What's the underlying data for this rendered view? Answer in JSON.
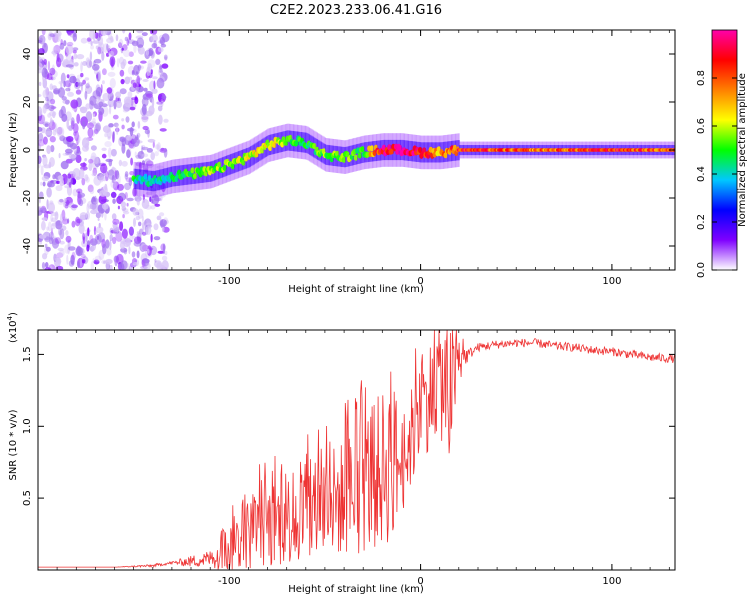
{
  "figure_title": "C2E2.2023.233.06.41.G16",
  "colors": {
    "snr_line": "#ee3333",
    "axis": "#000000"
  },
  "chart_data": [
    {
      "type": "heatmap",
      "name": "spectrogram",
      "xlabel": "Height of straight line (km)",
      "ylabel": "Frequency (Hz)",
      "xlim": [
        -200,
        133
      ],
      "ylim": [
        -50,
        50
      ],
      "xticks": [
        -100,
        0,
        100
      ],
      "yticks": [
        -40,
        -20,
        0,
        20,
        40
      ],
      "colorbar": {
        "label": "Normalized spectral amplitude",
        "range": [
          0,
          1
        ],
        "ticks": [
          "0.0",
          "0.2",
          "0.4",
          "0.6",
          "0.8"
        ],
        "colormap": [
          "#ffffff",
          "#7f00ff",
          "#0000ff",
          "#00c8ff",
          "#00ff00",
          "#ffff00",
          "#ff8000",
          "#ff0000",
          "#ff00aa"
        ]
      },
      "ridge": {
        "heights_km": [
          -150,
          -140,
          -130,
          -120,
          -110,
          -100,
          -90,
          -80,
          -70,
          -60,
          -50,
          -40,
          -30,
          -20,
          -10,
          0,
          10,
          20,
          40,
          60,
          80,
          100,
          133
        ],
        "freq_hz": [
          -12,
          -13,
          -11,
          -10,
          -9,
          -6,
          -3,
          2,
          4,
          3,
          -2,
          -3,
          -1,
          0,
          0,
          -1,
          -1,
          0,
          0,
          0,
          0,
          0,
          0
        ],
        "amplitude": [
          0.45,
          0.4,
          0.45,
          0.5,
          0.55,
          0.55,
          0.6,
          0.6,
          0.55,
          0.45,
          0.55,
          0.55,
          0.5,
          0.95,
          0.95,
          0.9,
          0.7,
          0.85,
          0.8,
          0.75,
          0.8,
          0.85,
          0.75
        ]
      },
      "noise_region_km": [
        -200,
        -133
      ]
    },
    {
      "type": "line",
      "name": "snr",
      "xlabel": "Height of straight line (km)",
      "ylabel": "SNR (10 * v/v)",
      "scale_label": "(x10",
      "scale_exp": "4",
      "xlim": [
        -200,
        133
      ],
      "ylim": [
        0,
        1.67
      ],
      "xticks": [
        -100,
        0,
        100
      ],
      "yticks": [
        "0.5",
        "1.0",
        "1.5"
      ],
      "series": [
        {
          "name": "SNR",
          "x": [
            -200,
            -160,
            -140,
            -130,
            -120,
            -110,
            -100,
            -90,
            -80,
            -70,
            -60,
            -50,
            -40,
            -30,
            -20,
            -15,
            -10,
            0,
            10,
            15,
            20,
            25,
            30,
            40,
            50,
            60,
            70,
            80,
            90,
            100,
            110,
            120,
            133
          ],
          "y": [
            0.02,
            0.02,
            0.03,
            0.05,
            0.06,
            0.08,
            0.15,
            0.25,
            0.3,
            0.35,
            0.4,
            0.45,
            0.5,
            0.6,
            0.7,
            0.78,
            0.72,
            1.1,
            1.35,
            1.2,
            1.45,
            1.5,
            1.55,
            1.57,
            1.58,
            1.58,
            1.56,
            1.55,
            1.53,
            1.52,
            1.5,
            1.48,
            1.47
          ],
          "noise_amp": [
            0,
            0,
            0.01,
            0.01,
            0.04,
            0.06,
            0.18,
            0.25,
            0.3,
            0.32,
            0.35,
            0.4,
            0.4,
            0.5,
            0.55,
            0.6,
            0.35,
            0.35,
            0.4,
            0.55,
            0.15,
            0.04,
            0.03,
            0.03,
            0.03,
            0.03,
            0.03,
            0.03,
            0.03,
            0.03,
            0.03,
            0.03,
            0.03
          ]
        }
      ]
    }
  ]
}
